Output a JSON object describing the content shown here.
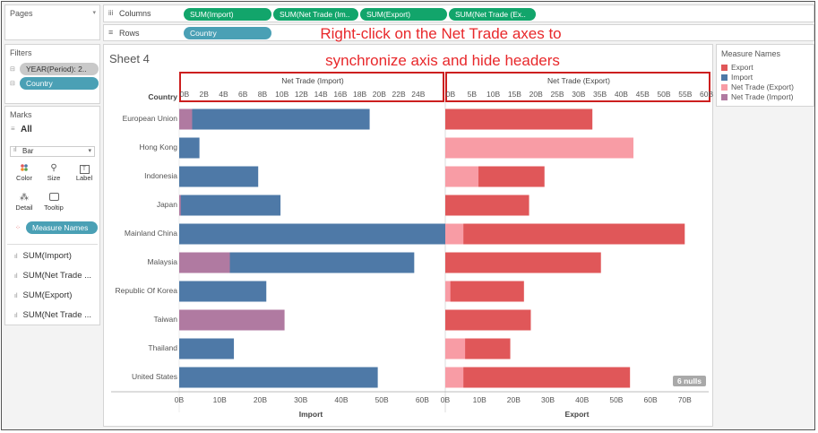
{
  "pages": {
    "title": "Pages"
  },
  "shelves": {
    "columns_label": "Columns",
    "rows_label": "Rows",
    "columns": [
      "SUM(Import)",
      "SUM(Net Trade (Im..",
      "SUM(Export)",
      "SUM(Net Trade (Ex.."
    ],
    "rows": [
      "Country"
    ]
  },
  "filters": {
    "title": "Filters",
    "items": [
      "YEAR(Period): 2..",
      "Country"
    ]
  },
  "marks": {
    "title": "Marks",
    "all_label": "All",
    "mark_type": "Bar",
    "cards": [
      {
        "label": "Color",
        "icon": "color-icon"
      },
      {
        "label": "Size",
        "icon": "size-icon"
      },
      {
        "label": "Label",
        "icon": "label-icon"
      },
      {
        "label": "Detail",
        "icon": "detail-icon"
      },
      {
        "label": "Tooltip",
        "icon": "tooltip-icon"
      }
    ],
    "measure_names_pill": "Measure Names",
    "fields": [
      "SUM(Import)",
      "SUM(Net Trade ...",
      "SUM(Export)",
      "SUM(Net Trade ..."
    ]
  },
  "sheet": {
    "title": "Sheet 4",
    "row_header": "Country"
  },
  "annotation": {
    "line1": "Right-click on the Net Trade axes to",
    "line2": "synchronize axis and hide headers"
  },
  "legend": {
    "title": "Measure Names",
    "items": [
      {
        "label": "Export",
        "color": "#e05759"
      },
      {
        "label": "Import",
        "color": "#4e79a7"
      },
      {
        "label": "Net Trade (Export)",
        "color": "#f89ca5"
      },
      {
        "label": "Net Trade (Import)",
        "color": "#b07aa1"
      }
    ]
  },
  "nulls_badge": "6 nulls",
  "chart_data": {
    "type": "bar",
    "categories": [
      "European Union",
      "Hong Kong",
      "Indonesia",
      "Japan",
      "Mainland China",
      "Malaysia",
      "Republic Of Korea",
      "Taiwan",
      "Thailand",
      "United States"
    ],
    "panes": [
      {
        "axis_label": "Import",
        "top_axis_label": "Net Trade (Import)",
        "xlim": [
          0,
          65
        ],
        "ticks": [
          "0B",
          "10B",
          "20B",
          "30B",
          "40B",
          "50B",
          "60B"
        ],
        "top_xlim": [
          0,
          26.5
        ],
        "top_ticks": [
          "0B",
          "2B",
          "4B",
          "6B",
          "8B",
          "10B",
          "12B",
          "14B",
          "16B",
          "18B",
          "20B",
          "22B",
          "24B"
        ],
        "series": [
          {
            "name": "Import",
            "color": "#4e79a7",
            "values": [
              47,
              5,
              19.5,
              25,
              66,
              58,
              21.5,
              0,
              13.5,
              49
            ]
          },
          {
            "name": "Net Trade (Import)",
            "color": "#b07aa1",
            "values": [
              3.2,
              0,
              0,
              0.4,
              0,
              12.5,
              0,
              26,
              0,
              0
            ]
          }
        ]
      },
      {
        "axis_label": "Export",
        "top_axis_label": "Net Trade (Export)",
        "xlim": [
          0,
          77
        ],
        "ticks": [
          "0B",
          "10B",
          "20B",
          "30B",
          "40B",
          "50B",
          "60B",
          "70B"
        ],
        "top_xlim": [
          0,
          60.5
        ],
        "top_ticks": [
          "0B",
          "5B",
          "10B",
          "15B",
          "20B",
          "25B",
          "30B",
          "35B",
          "40B",
          "45B",
          "50B",
          "55B",
          "60B"
        ],
        "series": [
          {
            "name": "Export",
            "color": "#e05759",
            "values": [
              43,
              null,
              29,
              24.5,
              70,
              45.5,
              23,
              25,
              19,
              54
            ]
          },
          {
            "name": "Net Trade (Export)",
            "color": "#f89ca5",
            "values": [
              null,
              55,
              9.7,
              null,
              5.3,
              null,
              1.5,
              null,
              5.8,
              5.3
            ]
          }
        ]
      }
    ]
  }
}
